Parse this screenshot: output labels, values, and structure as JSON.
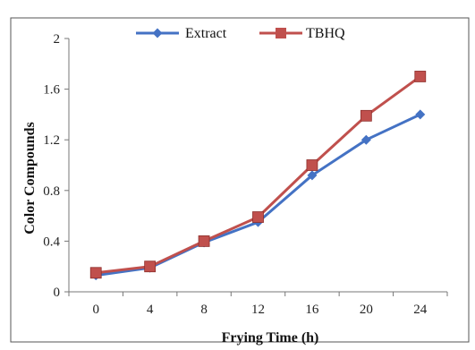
{
  "chart_data": {
    "type": "line",
    "title": "",
    "xlabel": "Frying Time (h)",
    "ylabel": "Color Compounds",
    "categories": [
      "0",
      "4",
      "8",
      "12",
      "16",
      "20",
      "24"
    ],
    "x": [
      0,
      4,
      8,
      12,
      16,
      20,
      24
    ],
    "yticks": [
      "0",
      "0.4",
      "0.8",
      "1.2",
      "1.6",
      "2"
    ],
    "ylim": [
      0,
      2
    ],
    "grid": false,
    "legend_position": "top-center",
    "series": [
      {
        "name": "Extract",
        "values": [
          0.13,
          0.19,
          0.39,
          0.55,
          0.92,
          1.2,
          1.4
        ],
        "color": "#4472C4",
        "marker": "diamond"
      },
      {
        "name": "TBHQ",
        "values": [
          0.15,
          0.2,
          0.4,
          0.59,
          1.0,
          1.39,
          1.7
        ],
        "color": "#C0504D",
        "marker": "square"
      }
    ]
  }
}
